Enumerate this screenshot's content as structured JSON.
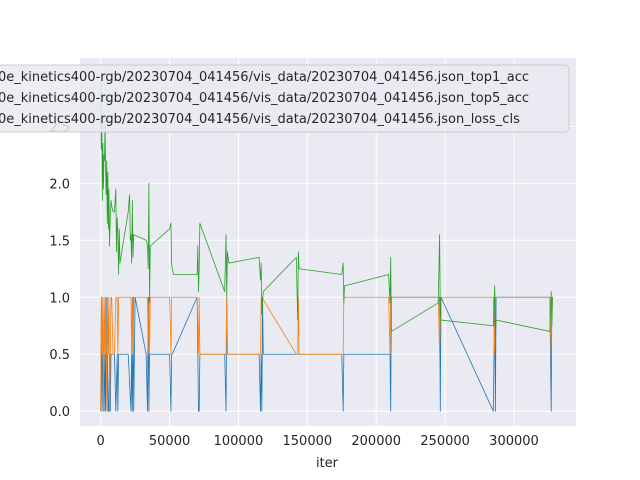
{
  "chart_data": {
    "type": "line",
    "title": "",
    "xlabel": "iter",
    "ylabel": "",
    "xlim": [
      -15000,
      345000
    ],
    "ylim": [
      -0.13,
      3.1
    ],
    "grid": true,
    "legend_placement": "top-left",
    "x_ticks": [
      0,
      50000,
      100000,
      150000,
      200000,
      250000,
      300000
    ],
    "x_tick_labels": [
      "0",
      "50000",
      "100000",
      "150000",
      "200000",
      "250000",
      "300000"
    ],
    "y_ticks": [
      0.0,
      0.5,
      1.0,
      1.5,
      2.0,
      2.5
    ],
    "y_tick_labels": [
      "0.0",
      "0.5",
      "1.0",
      "1.5",
      "2.0",
      "2.5"
    ],
    "series": [
      {
        "name": "0e_kinetics400-rgb/20230704_041456/vis_data/20230704_041456.json_top1_acc",
        "color": "#1f77b4",
        "x": [
          0,
          500,
          1000,
          1500,
          2000,
          2500,
          3000,
          3500,
          4000,
          4500,
          5000,
          5500,
          6000,
          6500,
          7000,
          7500,
          8000,
          9000,
          10000,
          11000,
          12000,
          12500,
          13000,
          13500,
          14000,
          15000,
          20000,
          22000,
          22500,
          23000,
          23500,
          24000,
          24500,
          25000,
          33000,
          34000,
          34500,
          35000,
          35500,
          36000,
          50000,
          51000,
          51500,
          52000,
          70000,
          71000,
          71500,
          72000,
          72500,
          90000,
          91000,
          91500,
          92000,
          115000,
          116000,
          116500,
          117000,
          117500,
          118000,
          142000,
          143000,
          143500,
          144000,
          175000,
          176000,
          176500,
          177000,
          209000,
          210000,
          210500,
          211000,
          245000,
          246000,
          246500,
          247000,
          285000,
          286000,
          286500,
          287000,
          326000,
          327000,
          327500,
          328000
        ],
        "y": [
          0,
          1.0,
          0,
          0.5,
          0.5,
          0,
          0.5,
          0,
          1.0,
          0,
          0.5,
          0,
          0,
          0.5,
          0,
          0.5,
          0.5,
          0.5,
          0.5,
          0,
          0.5,
          0,
          0.5,
          0.5,
          0.5,
          0.5,
          0.5,
          0,
          0.5,
          0,
          1.0,
          0,
          0.5,
          1.0,
          0.5,
          0,
          1.0,
          0,
          0.5,
          0.5,
          0.5,
          0,
          0.5,
          0.5,
          1.0,
          0,
          0,
          0.5,
          0.5,
          0.5,
          0,
          1.0,
          0.5,
          0.5,
          0,
          0.5,
          0,
          1.0,
          0.5,
          0.5,
          0.5,
          0.5,
          0.5,
          0.5,
          0,
          0.5,
          0.5,
          0.5,
          0.5,
          0,
          1.0,
          1.0,
          1.0,
          0,
          1.0,
          0,
          1.0,
          0,
          1.0,
          1.0,
          0,
          1.0,
          1.0
        ]
      },
      {
        "name": "0e_kinetics400-rgb/20230704_041456/vis_data/20230704_041456.json_top5_acc",
        "color": "#ff7f0e",
        "x": [
          0,
          500,
          1000,
          1500,
          2000,
          2500,
          3000,
          3500,
          4000,
          4500,
          5000,
          5500,
          6000,
          6500,
          7000,
          7500,
          8000,
          9000,
          10000,
          11000,
          12000,
          12500,
          13000,
          13500,
          14000,
          20000,
          22000,
          22500,
          23000,
          23500,
          24000,
          33000,
          34000,
          34500,
          35000,
          35500,
          36000,
          50000,
          51000,
          51500,
          52000,
          70000,
          71000,
          71500,
          72000,
          90000,
          91000,
          91500,
          92000,
          115000,
          116000,
          116500,
          117000,
          142000,
          143000,
          143500,
          144000,
          175000,
          176000,
          176500,
          177000,
          209000,
          210000,
          210500,
          211000,
          245000,
          246000,
          246500,
          247000,
          285000,
          286000,
          286500,
          287000,
          326000,
          327000,
          327500,
          328000
        ],
        "y": [
          0,
          1.0,
          0.5,
          1.0,
          0,
          1.0,
          0.5,
          1.0,
          0.5,
          0,
          1.0,
          0.5,
          1.0,
          0,
          0.5,
          1.0,
          1.0,
          0.5,
          0.5,
          1.0,
          1.0,
          0.5,
          1.0,
          1.0,
          1.0,
          1.0,
          1.0,
          0.5,
          1.0,
          0.5,
          1.0,
          1.0,
          1.0,
          0.5,
          1.0,
          0.5,
          1.0,
          1.0,
          0.5,
          1.0,
          1.0,
          1.0,
          0.5,
          1.0,
          0.5,
          0.5,
          0.5,
          1.0,
          0.5,
          0.5,
          0.5,
          1.0,
          1.0,
          0.5,
          0.5,
          1.0,
          0.5,
          0.5,
          0.5,
          1.0,
          1.0,
          1.0,
          0.5,
          1.0,
          1.0,
          1.0,
          0.5,
          1.0,
          1.0,
          1.0,
          0.5,
          1.0,
          1.0,
          1.0,
          0.5,
          1.0,
          1.0
        ]
      },
      {
        "name": "0e_kinetics400-rgb/20230704_041456/vis_data/20230704_041456.json_loss_cls",
        "color": "#2ca02c",
        "x": [
          0,
          400,
          800,
          1200,
          1600,
          2000,
          2400,
          2800,
          3200,
          3600,
          4000,
          4400,
          4800,
          5200,
          5600,
          6000,
          6400,
          7000,
          7500,
          8000,
          9000,
          10000,
          11000,
          11500,
          12000,
          12500,
          13000,
          13500,
          14000,
          20000,
          21000,
          21500,
          22000,
          22500,
          23000,
          23500,
          24000,
          33000,
          34000,
          34500,
          35000,
          35500,
          36000,
          50000,
          51000,
          51500,
          52000,
          53000,
          70000,
          70500,
          71000,
          71500,
          72000,
          90000,
          91000,
          91500,
          92000,
          93000,
          115000,
          116000,
          116500,
          117000,
          118000,
          142000,
          143000,
          143500,
          144000,
          175000,
          176000,
          176500,
          177000,
          209000,
          210000,
          210500,
          211000,
          245000,
          246000,
          246500,
          247000,
          285000,
          286000,
          286500,
          287000,
          326000,
          327000,
          327500,
          328000
        ],
        "y": [
          2.9,
          2.3,
          2.6,
          1.85,
          2.35,
          1.95,
          2.25,
          2.2,
          2.55,
          2.1,
          1.9,
          2.2,
          1.65,
          2.1,
          1.6,
          1.95,
          1.45,
          1.7,
          1.85,
          1.8,
          1.75,
          1.75,
          1.95,
          1.4,
          1.7,
          1.55,
          1.2,
          1.6,
          1.3,
          1.75,
          1.9,
          1.5,
          1.55,
          1.3,
          1.85,
          1.35,
          1.55,
          1.5,
          1.45,
          1.25,
          2.0,
          0.95,
          1.45,
          1.6,
          1.65,
          1.3,
          1.25,
          1.2,
          1.2,
          1.45,
          1.05,
          1.25,
          1.65,
          1.05,
          1.55,
          1.0,
          1.4,
          1.3,
          1.35,
          1.15,
          1.3,
          0.85,
          1.05,
          1.35,
          0.8,
          1.4,
          1.25,
          1.2,
          1.3,
          0.95,
          1.1,
          1.2,
          0.95,
          1.35,
          0.7,
          0.95,
          1.55,
          0.85,
          0.8,
          0.75,
          1.1,
          0.65,
          0.8,
          0.7,
          1.05,
          0.75,
          1.0
        ]
      }
    ]
  }
}
